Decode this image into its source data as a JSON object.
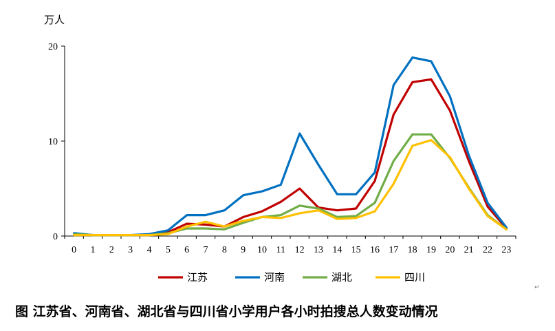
{
  "chart_data": {
    "type": "line",
    "title": "",
    "ylabel": "万人",
    "xlabel": "",
    "ylim": [
      0,
      20
    ],
    "y_ticks": [
      "0",
      "10",
      "20"
    ],
    "categories": [
      "0",
      "1",
      "2",
      "3",
      "4",
      "5",
      "6",
      "7",
      "8",
      "9",
      "10",
      "11",
      "12",
      "13",
      "14",
      "15",
      "16",
      "17",
      "18",
      "19",
      "20",
      "21",
      "22",
      "23"
    ],
    "legend_position": "bottom",
    "grid": false,
    "series": [
      {
        "name": "江苏",
        "color": "#C00000",
        "values": [
          0.2,
          0.1,
          0.1,
          0.1,
          0.1,
          0.4,
          1.3,
          1.2,
          1.0,
          2.0,
          2.6,
          3.6,
          5.0,
          3.0,
          2.7,
          2.9,
          5.8,
          12.8,
          16.2,
          16.5,
          13.2,
          7.9,
          3.1,
          0.8
        ]
      },
      {
        "name": "河南",
        "color": "#0070C0",
        "values": [
          0.3,
          0.1,
          0.1,
          0.1,
          0.2,
          0.6,
          2.2,
          2.2,
          2.7,
          4.3,
          4.7,
          5.4,
          10.8,
          7.5,
          4.4,
          4.4,
          6.7,
          15.9,
          18.8,
          18.4,
          14.7,
          8.5,
          3.5,
          0.9
        ]
      },
      {
        "name": "湖北",
        "color": "#70AD47",
        "values": [
          0.2,
          0.1,
          0.1,
          0.1,
          0.1,
          0.3,
          0.8,
          0.8,
          0.7,
          1.4,
          2.0,
          2.2,
          3.2,
          2.9,
          2.0,
          2.1,
          3.5,
          7.9,
          10.7,
          10.7,
          8.2,
          5.1,
          2.2,
          0.7
        ]
      },
      {
        "name": "四川",
        "color": "#FFC000",
        "values": [
          0.1,
          0.1,
          0.1,
          0.1,
          0.1,
          0.2,
          1.0,
          1.5,
          1.0,
          1.6,
          2.0,
          1.9,
          2.4,
          2.7,
          1.8,
          1.9,
          2.6,
          5.5,
          9.5,
          10.1,
          8.3,
          5.0,
          2.1,
          0.7
        ]
      }
    ]
  },
  "caption": "图  江苏省、河南省、湖北省与四川省小学用户各小时拍搜总人数变动情况",
  "para_mark": "↵"
}
